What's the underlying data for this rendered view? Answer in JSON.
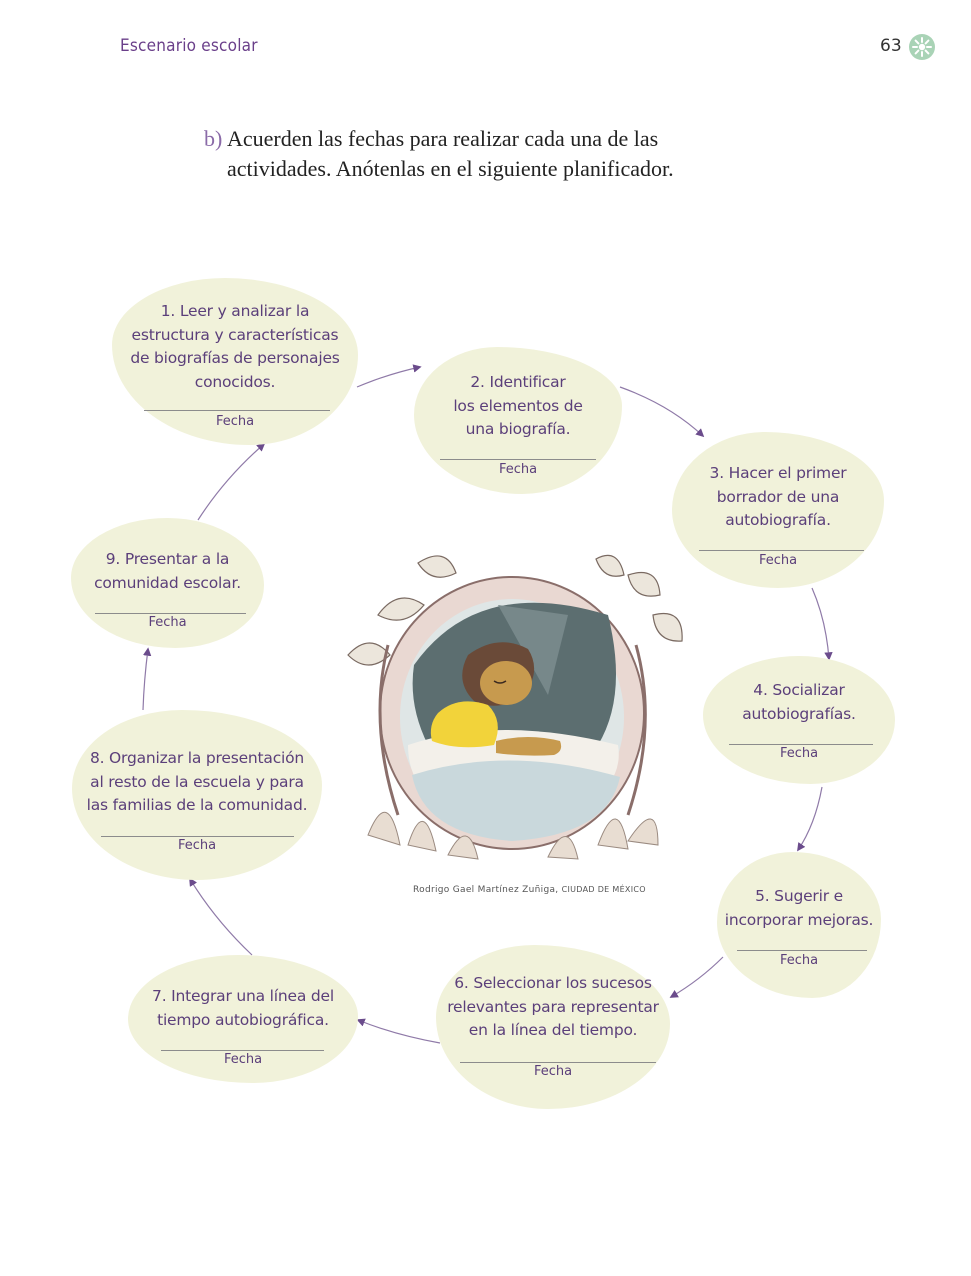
{
  "header": {
    "title": "Escenario escolar",
    "page_number": "63",
    "badge_icon": "sun-icon"
  },
  "instruction": {
    "letter": "b)",
    "line1": "Acuerden las fechas para realizar cada una de las",
    "line2": "actividades. Anótenlas en el siguiente planificador."
  },
  "planner": {
    "fecha_label": "Fecha",
    "steps": [
      {
        "lines": [
          "1. Leer y analizar la",
          "estructura y características",
          "de biografías de personajes",
          "conocidos."
        ]
      },
      {
        "lines": [
          "2. Identificar",
          "los elementos de",
          "una biografía."
        ]
      },
      {
        "lines": [
          "3. Hacer el primer",
          "borrador de una",
          "autobiografía."
        ]
      },
      {
        "lines": [
          "4. Socializar",
          "autobiografías."
        ]
      },
      {
        "lines": [
          "5. Sugerir e",
          "incorporar mejoras."
        ]
      },
      {
        "lines": [
          "6. Seleccionar los sucesos",
          "relevantes para representar",
          "en la línea del tiempo."
        ]
      },
      {
        "lines": [
          "7. Integrar una línea del",
          "tiempo autobiográfica."
        ]
      },
      {
        "lines": [
          "8. Organizar la presentación",
          "al resto de la escuela y para",
          "las familias de la comunidad."
        ]
      },
      {
        "lines": [
          "9. Presentar a la",
          "comunidad escolar."
        ]
      }
    ]
  },
  "illustration": {
    "subject": "girl-sleeping-illustration",
    "credit_name": "Rodrigo Gael Martínez Zuñiga,",
    "credit_place": "CIUDAD DE MÉXICO"
  },
  "colors": {
    "accent": "#6a3f8a",
    "blob": "#f1f2da",
    "arrow": "#6b4c8c"
  }
}
